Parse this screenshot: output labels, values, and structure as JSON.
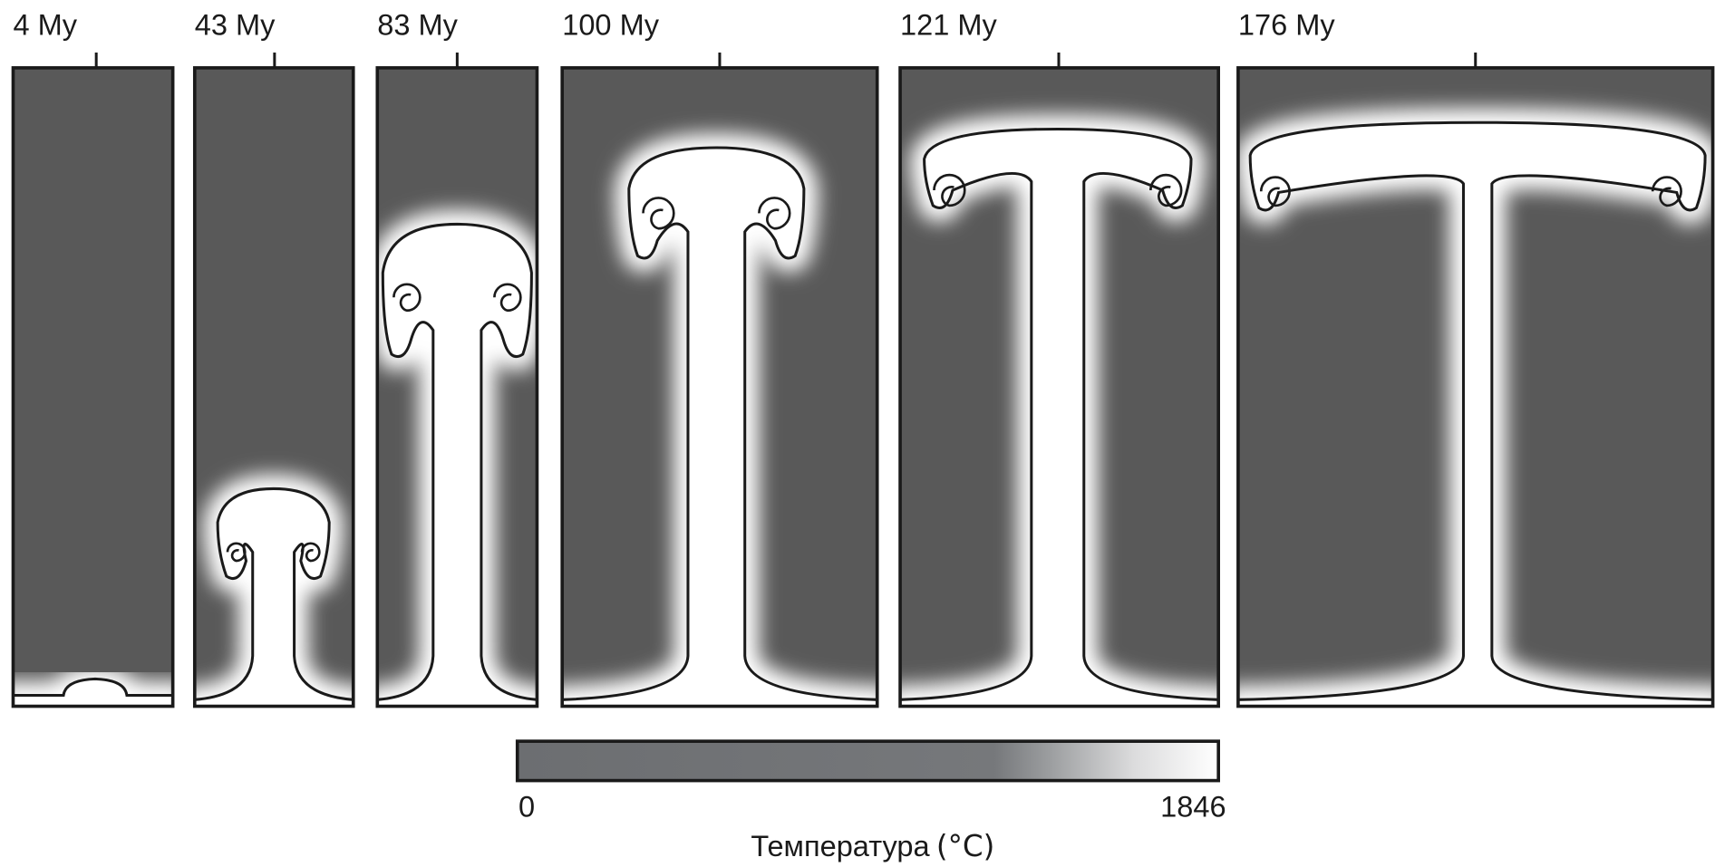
{
  "panels": [
    {
      "label": "4 My"
    },
    {
      "label": "43 My"
    },
    {
      "label": "83 My"
    },
    {
      "label": "100 My"
    },
    {
      "label": "121 My"
    },
    {
      "label": "176 My"
    }
  ],
  "colorbar": {
    "min": "0",
    "max": "1846",
    "label": "Температура",
    "unit": "(°C)"
  }
}
